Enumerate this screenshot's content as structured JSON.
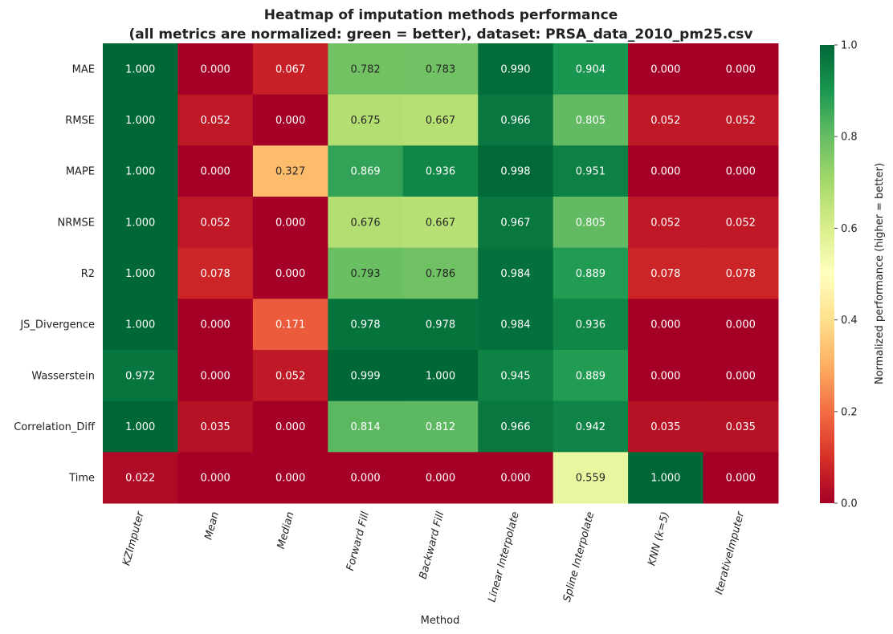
{
  "chart_data": {
    "type": "heatmap",
    "title_line1": "Heatmap of imputation methods performance",
    "title_line2": "(all metrics are normalized: green = better), dataset: PRSA_data_2010_pm25.csv",
    "xlabel": "Method",
    "ylabel": "",
    "colorbar_label": "Normalized performance (higher = better)",
    "colorbar_ticks": [
      "0.0",
      "0.2",
      "0.4",
      "0.6",
      "0.8",
      "1.0"
    ],
    "colormap": "RdYlGn",
    "vmin": 0.0,
    "vmax": 1.0,
    "columns": [
      "KZImputer",
      "Mean",
      "Median",
      "Forward Fill",
      "Backward Fill",
      "Linear Interpolate",
      "Spline Interpolate",
      "KNN (k=5)",
      "IterativeImputer"
    ],
    "rows": [
      "MAE",
      "RMSE",
      "MAPE",
      "NRMSE",
      "R2",
      "JS_Divergence",
      "Wasserstein",
      "Correlation_Diff",
      "Time"
    ],
    "values": [
      [
        1.0,
        0.0,
        0.067,
        0.782,
        0.783,
        0.99,
        0.904,
        0.0,
        0.0
      ],
      [
        1.0,
        0.052,
        0.0,
        0.675,
        0.667,
        0.966,
        0.805,
        0.052,
        0.052
      ],
      [
        1.0,
        0.0,
        0.327,
        0.869,
        0.936,
        0.998,
        0.951,
        0.0,
        0.0
      ],
      [
        1.0,
        0.052,
        0.0,
        0.676,
        0.667,
        0.967,
        0.805,
        0.052,
        0.052
      ],
      [
        1.0,
        0.078,
        0.0,
        0.793,
        0.786,
        0.984,
        0.889,
        0.078,
        0.078
      ],
      [
        1.0,
        0.0,
        0.171,
        0.978,
        0.978,
        0.984,
        0.936,
        0.0,
        0.0
      ],
      [
        0.972,
        0.0,
        0.052,
        0.999,
        1.0,
        0.945,
        0.889,
        0.0,
        0.0
      ],
      [
        1.0,
        0.035,
        0.0,
        0.814,
        0.812,
        0.966,
        0.942,
        0.035,
        0.035
      ],
      [
        0.022,
        0.0,
        0.0,
        0.0,
        0.0,
        0.0,
        0.559,
        1.0,
        0.0
      ]
    ],
    "value_format": "3 decimals",
    "grid": false
  }
}
